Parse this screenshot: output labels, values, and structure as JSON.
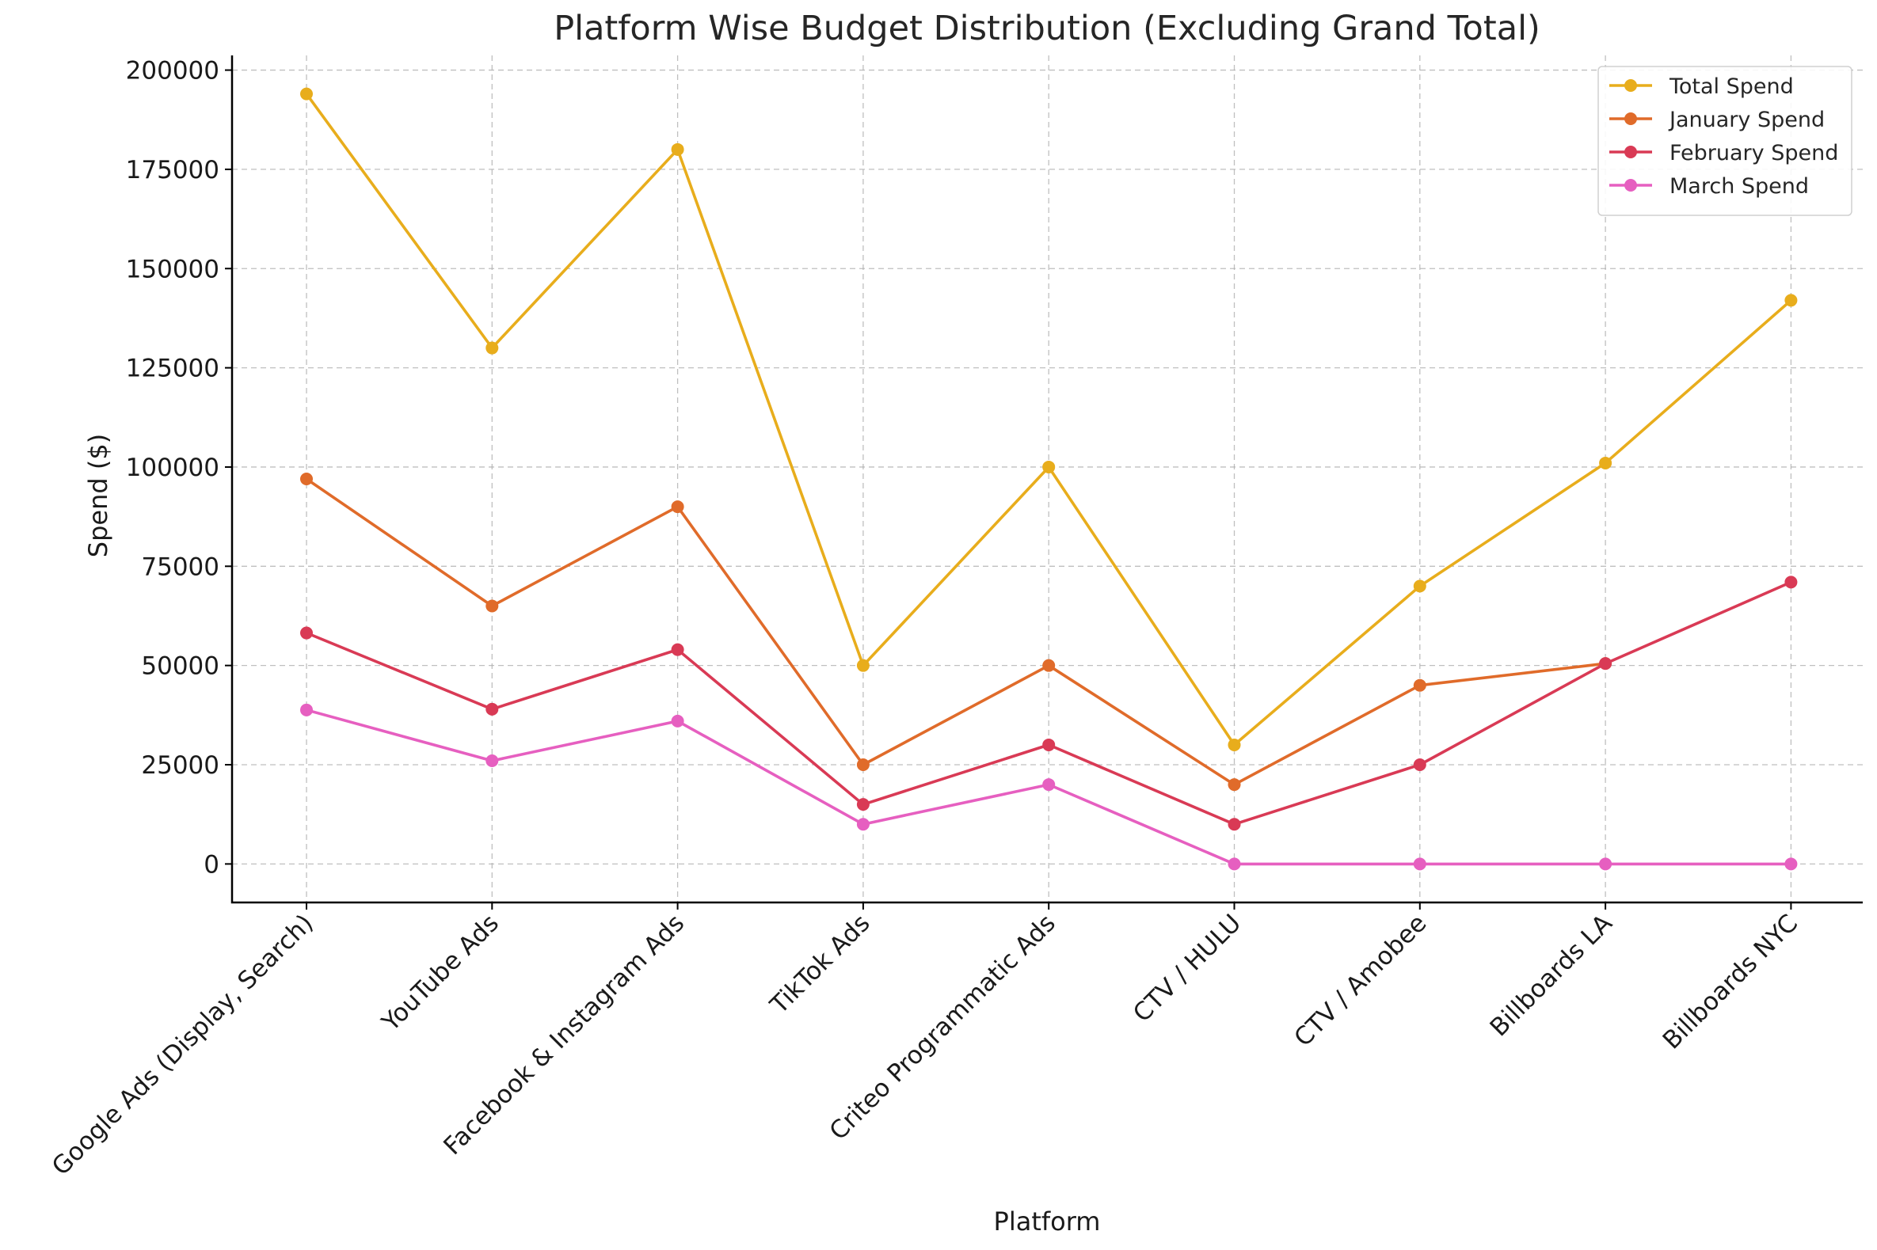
{
  "chart_data": {
    "type": "line",
    "title": "Platform Wise Budget Distribution (Excluding Grand Total)",
    "xlabel": "Platform",
    "ylabel": "Spend ($)",
    "categories": [
      "Google Ads (Display, Search)",
      "YouTube Ads",
      "Facebook & Instagram Ads",
      "TikTok Ads",
      "Criteo Programmatic Ads",
      "CTV / HULU",
      "CTV / Amobee",
      "Billboards LA",
      "Billboards NYC"
    ],
    "yticks": [
      0,
      25000,
      50000,
      75000,
      100000,
      125000,
      150000,
      175000,
      200000
    ],
    "ylim": [
      -9700,
      203700
    ],
    "grid": true,
    "legend_position": "top-right",
    "series": [
      {
        "name": "Total Spend",
        "color": "#e8ad1c",
        "values": [
          194000,
          130000,
          180000,
          50000,
          100000,
          30000,
          70000,
          101000,
          142000
        ]
      },
      {
        "name": "January Spend",
        "color": "#e06b2a",
        "values": [
          97000,
          65000,
          90000,
          25000,
          50000,
          20000,
          45000,
          50500,
          null
        ]
      },
      {
        "name": "February Spend",
        "color": "#d93a55",
        "values": [
          58200,
          39000,
          54000,
          15000,
          30000,
          10000,
          25000,
          50500,
          71000
        ]
      },
      {
        "name": "March Spend",
        "color": "#e65fc0",
        "values": [
          38800,
          26000,
          36000,
          10000,
          20000,
          0,
          0,
          0,
          0
        ]
      }
    ]
  }
}
